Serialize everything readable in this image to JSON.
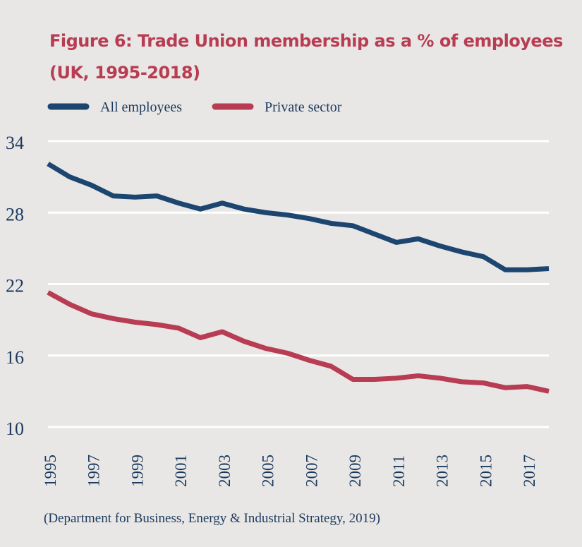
{
  "chart_data": {
    "type": "line",
    "title": "Figure 6: Trade Union membership as a % of employees (UK, 1995-2018)",
    "source": "(Department for Business, Energy & Industrial Strategy, 2019)",
    "x": [
      1995,
      1996,
      1997,
      1998,
      1999,
      2000,
      2001,
      2002,
      2003,
      2004,
      2005,
      2006,
      2007,
      2008,
      2009,
      2010,
      2011,
      2012,
      2013,
      2014,
      2015,
      2016,
      2017,
      2018
    ],
    "x_tick_labels": [
      "1995",
      "1997",
      "1999",
      "2001",
      "2003",
      "2005",
      "2007",
      "2009",
      "2011",
      "2013",
      "2015",
      "2017"
    ],
    "ylim": [
      10,
      34
    ],
    "y_ticks": [
      10,
      16,
      22,
      28,
      34
    ],
    "grid": "horizontal",
    "legend_placement": "top-left",
    "series": [
      {
        "name": "All employees",
        "color": "#1c4670",
        "values": [
          32.1,
          31.0,
          30.3,
          29.4,
          29.3,
          29.4,
          28.8,
          28.3,
          28.8,
          28.3,
          28.0,
          27.8,
          27.5,
          27.1,
          26.9,
          26.2,
          25.5,
          25.8,
          25.2,
          24.7,
          24.3,
          23.2,
          23.2,
          23.3
        ]
      },
      {
        "name": "Private sector",
        "color": "#b83c52",
        "values": [
          21.3,
          20.3,
          19.5,
          19.1,
          18.8,
          18.6,
          18.3,
          17.5,
          18.0,
          17.2,
          16.6,
          16.2,
          15.6,
          15.1,
          14.0,
          14.0,
          14.1,
          14.3,
          14.1,
          13.8,
          13.7,
          13.3,
          13.4,
          13.0
        ]
      }
    ],
    "title_color": "#b83c52",
    "background": "#e8e7e5"
  }
}
